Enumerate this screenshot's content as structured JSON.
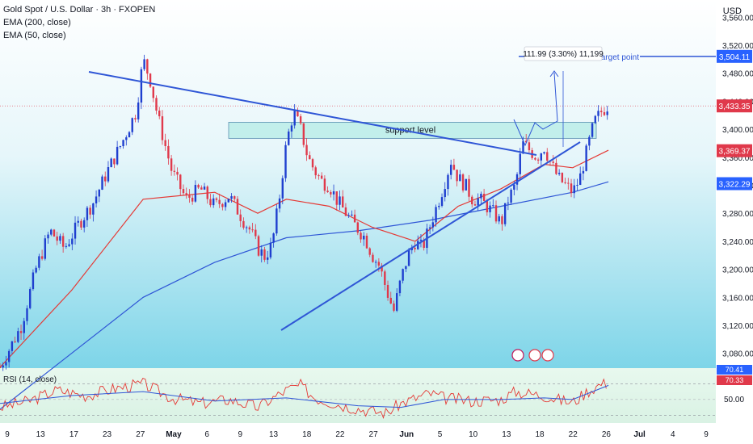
{
  "legend": {
    "symbol": "Gold Spot / U.S. Dollar · 3h · FXOPEN",
    "ema200": "EMA (200, close)",
    "ema50": "EMA (50, close)"
  },
  "currency": "USD",
  "colors": {
    "background_top": "#ffffff",
    "background_bottom": "#4fc6e0",
    "up": "#1f3fcf",
    "down": "#e0394b",
    "ema50": "#e53935",
    "ema200": "#2f56d6",
    "trendline": "#2f56d6",
    "rsi": "#e53935",
    "rsi_ma": "#2f56d6",
    "price_tag_red": "#e0394b",
    "price_tag_blue": "#2962ff"
  },
  "chart_data": {
    "type": "candlestick",
    "title": "Gold Spot / U.S. Dollar · 3h · FXOPEN",
    "x_tick_labels": [
      "9",
      "13",
      "17",
      "23",
      "27",
      "May",
      "6",
      "9",
      "13",
      "18",
      "22",
      "27",
      "Jun",
      "5",
      "10",
      "13",
      "18",
      "22",
      "26",
      "Jul",
      "4",
      "9"
    ],
    "y_tick_labels": [
      "3,560.00",
      "3,520.00",
      "3,480.00",
      "3,440.00",
      "3,400.00",
      "3,360.00",
      "3,320.00",
      "3,280.00",
      "3,240.00",
      "3,200.00",
      "3,160.00",
      "3,120.00",
      "3,080.00"
    ],
    "ylim": [
      3060,
      3580
    ],
    "price_path": [
      [
        0,
        3060
      ],
      [
        3,
        3120
      ],
      [
        5,
        3200
      ],
      [
        7,
        3255
      ],
      [
        9,
        3230
      ],
      [
        11,
        3265
      ],
      [
        13,
        3295
      ],
      [
        15,
        3340
      ],
      [
        17,
        3380
      ],
      [
        19,
        3425
      ],
      [
        20,
        3500
      ],
      [
        21,
        3470
      ],
      [
        22,
        3420
      ],
      [
        24,
        3340
      ],
      [
        26,
        3300
      ],
      [
        28,
        3315
      ],
      [
        30,
        3290
      ],
      [
        32,
        3305
      ],
      [
        34,
        3270
      ],
      [
        35,
        3255
      ],
      [
        36,
        3230
      ],
      [
        37,
        3218
      ],
      [
        38,
        3235
      ],
      [
        39,
        3300
      ],
      [
        40,
        3380
      ],
      [
        41,
        3425
      ],
      [
        42,
        3400
      ],
      [
        43,
        3360
      ],
      [
        44,
        3340
      ],
      [
        45,
        3325
      ],
      [
        46,
        3320
      ],
      [
        47,
        3300
      ],
      [
        49,
        3270
      ],
      [
        51,
        3245
      ],
      [
        52,
        3220
      ],
      [
        53,
        3205
      ],
      [
        54,
        3170
      ],
      [
        55,
        3140
      ],
      [
        56,
        3185
      ],
      [
        57,
        3220
      ],
      [
        58,
        3240
      ],
      [
        59,
        3230
      ],
      [
        60,
        3260
      ],
      [
        62,
        3320
      ],
      [
        63,
        3355
      ],
      [
        64,
        3330
      ],
      [
        65,
        3320
      ],
      [
        66,
        3300
      ],
      [
        67,
        3300
      ],
      [
        68,
        3290
      ],
      [
        69,
        3280
      ],
      [
        70,
        3265
      ],
      [
        71,
        3300
      ],
      [
        72,
        3320
      ],
      [
        73,
        3380
      ],
      [
        74,
        3370
      ],
      [
        75,
        3360
      ],
      [
        76,
        3375
      ],
      [
        77,
        3350
      ],
      [
        78,
        3330
      ],
      [
        79,
        3320
      ],
      [
        80,
        3310
      ],
      [
        81,
        3330
      ],
      [
        82,
        3370
      ],
      [
        83,
        3410
      ],
      [
        84,
        3425
      ],
      [
        85,
        3435
      ]
    ],
    "price_x_range": [
      0,
      100
    ],
    "ema50_path": [
      [
        0,
        3060
      ],
      [
        10,
        3170
      ],
      [
        20,
        3300
      ],
      [
        30,
        3310
      ],
      [
        36,
        3280
      ],
      [
        40,
        3300
      ],
      [
        46,
        3290
      ],
      [
        52,
        3260
      ],
      [
        58,
        3240
      ],
      [
        64,
        3290
      ],
      [
        70,
        3315
      ],
      [
        76,
        3350
      ],
      [
        80,
        3345
      ],
      [
        85,
        3370
      ]
    ],
    "ema200_path": [
      [
        0,
        3000
      ],
      [
        10,
        3080
      ],
      [
        20,
        3160
      ],
      [
        30,
        3210
      ],
      [
        40,
        3245
      ],
      [
        50,
        3255
      ],
      [
        60,
        3270
      ],
      [
        70,
        3290
      ],
      [
        80,
        3310
      ],
      [
        85,
        3325
      ]
    ],
    "current_price": "3,433.35",
    "price_tags": [
      {
        "label": "3,504.11",
        "value": 3504.11,
        "kind": "blue"
      },
      {
        "label": "3,433.35",
        "value": 3433.35,
        "kind": "red"
      },
      {
        "label": "3,369.37",
        "value": 3369.37,
        "kind": "red"
      },
      {
        "label": "3,322.29",
        "value": 3322.29,
        "kind": "blue"
      }
    ],
    "annotations": {
      "support_label": "support level",
      "support_zone": [
        3387,
        3410
      ],
      "target_label": "target point",
      "target_value": 3504.11,
      "measure_label": "111.99 (3.30%) 11,199"
    },
    "rsi": {
      "label": "RSI (14, close)",
      "value_tags": [
        "70.41",
        "70.33"
      ],
      "tick_labels": [
        "50.00"
      ],
      "levels": [
        70,
        30
      ],
      "path": [
        [
          0,
          40
        ],
        [
          4,
          48
        ],
        [
          8,
          62
        ],
        [
          12,
          55
        ],
        [
          16,
          64
        ],
        [
          20,
          70
        ],
        [
          24,
          52
        ],
        [
          28,
          45
        ],
        [
          32,
          50
        ],
        [
          36,
          40
        ],
        [
          40,
          62
        ],
        [
          42,
          68
        ],
        [
          44,
          52
        ],
        [
          48,
          42
        ],
        [
          52,
          35
        ],
        [
          54,
          33
        ],
        [
          56,
          45
        ],
        [
          60,
          58
        ],
        [
          62,
          52
        ],
        [
          66,
          48
        ],
        [
          70,
          50
        ],
        [
          72,
          60
        ],
        [
          76,
          55
        ],
        [
          78,
          50
        ],
        [
          80,
          46
        ],
        [
          82,
          60
        ],
        [
          84,
          70
        ],
        [
          85,
          70.3
        ]
      ],
      "ma_path": [
        [
          0,
          45
        ],
        [
          10,
          55
        ],
        [
          20,
          60
        ],
        [
          30,
          48
        ],
        [
          40,
          52
        ],
        [
          50,
          42
        ],
        [
          56,
          40
        ],
        [
          62,
          50
        ],
        [
          70,
          50
        ],
        [
          76,
          52
        ],
        [
          80,
          50
        ],
        [
          85,
          68
        ]
      ]
    }
  }
}
